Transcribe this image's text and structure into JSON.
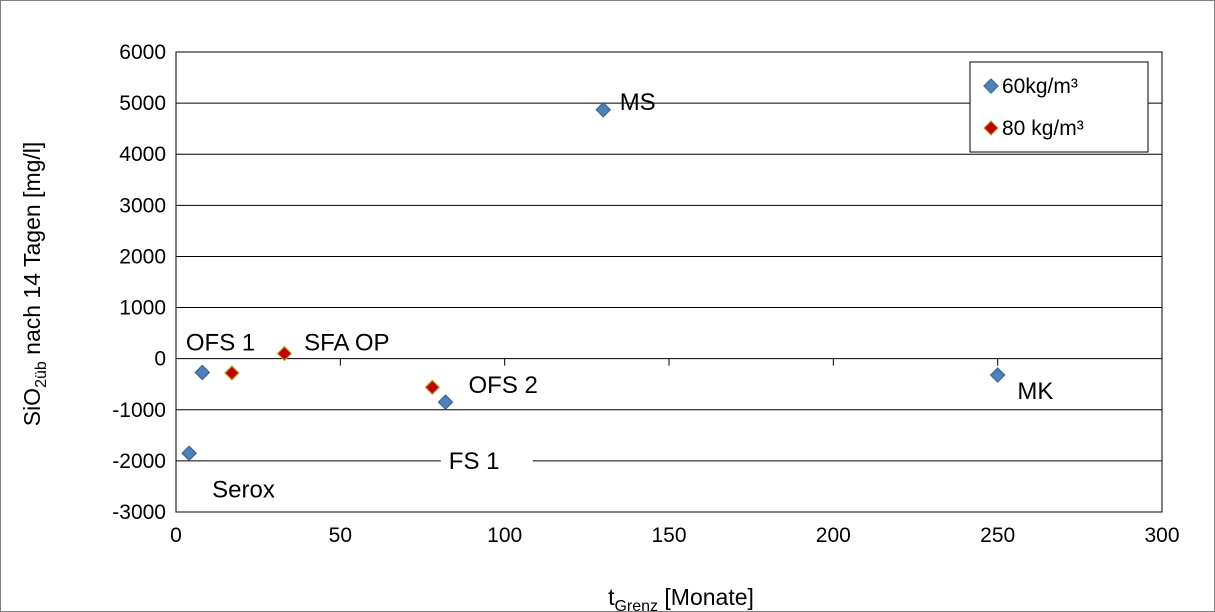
{
  "chart_data": {
    "type": "scatter",
    "xlabel": {
      "main": "t",
      "sub": "Grenz",
      "rest": " [Monate]"
    },
    "ylabel": {
      "main": "SiO",
      "sub": "2üb",
      "rest": " nach 14 Tagen [mg/l]"
    },
    "xlim": [
      0,
      300
    ],
    "ylim": [
      -3000,
      6000
    ],
    "xticks": [
      0,
      50,
      100,
      150,
      200,
      250,
      300
    ],
    "yticks": [
      6000,
      5000,
      4000,
      3000,
      2000,
      1000,
      0,
      -1000,
      -2000,
      -3000
    ],
    "grid": {
      "horizontal": true,
      "vertical": false
    },
    "legend": {
      "placement": "top-right"
    },
    "series": [
      {
        "name": "60kg/m³",
        "color": "#4f81bd",
        "stroke": "#3a6496",
        "marker": "diamond",
        "points": [
          {
            "x": 4,
            "y": -1850
          },
          {
            "x": 8,
            "y": -270
          },
          {
            "x": 82,
            "y": -850
          },
          {
            "x": 130,
            "y": 4870
          },
          {
            "x": 250,
            "y": -320
          }
        ]
      },
      {
        "name": "80 kg/m³",
        "color": "#c00000",
        "stroke": "#b8a830",
        "marker": "diamond",
        "points": [
          {
            "x": 17,
            "y": -280
          },
          {
            "x": 33,
            "y": 100
          },
          {
            "x": 78,
            "y": -560
          }
        ]
      }
    ],
    "annotations": [
      {
        "text": "MS",
        "x": 135,
        "y": 5020
      },
      {
        "text": "OFS 1",
        "x": 3,
        "y": 320
      },
      {
        "text": "SFA OP",
        "x": 39,
        "y": 320
      },
      {
        "text": "OFS 2",
        "x": 89,
        "y": -520
      },
      {
        "text": "MK",
        "x": 256,
        "y": -630
      },
      {
        "text": "FS 1",
        "x": 83,
        "y": -2000
      },
      {
        "text": "Serox",
        "x": 11,
        "y": -2560
      }
    ]
  }
}
